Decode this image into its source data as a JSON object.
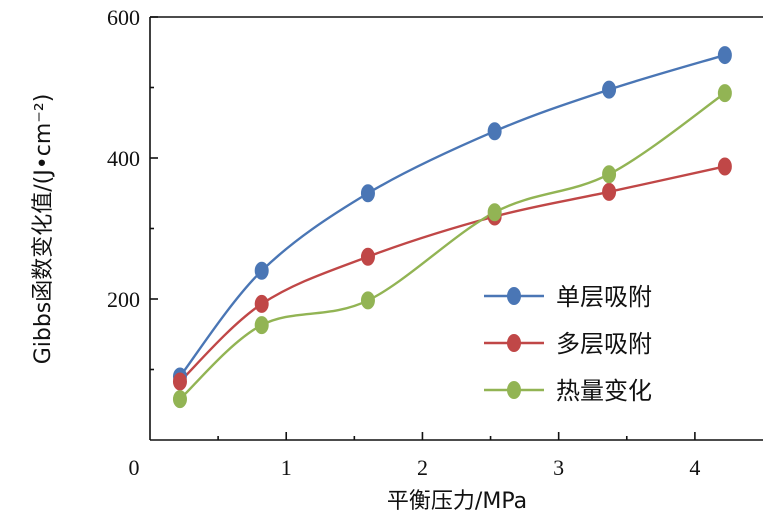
{
  "chart_data": {
    "type": "line",
    "xlabel": "平衡压力/MPa",
    "ylabel": "Gibbs函数变化值/(J•cm⁻²)",
    "xlim": [
      0,
      4.5
    ],
    "ylim": [
      0,
      600
    ],
    "xticks": [
      "0",
      "1",
      "2",
      "3",
      "4"
    ],
    "yticks": [
      "200",
      "400",
      "600"
    ],
    "legend_position": "bottom-right",
    "series": [
      {
        "name": "单层吸附",
        "color": "#4a76b5",
        "x": [
          0.22,
          0.82,
          1.6,
          2.53,
          3.37,
          4.22
        ],
        "values": [
          90,
          240,
          350,
          438,
          497,
          546
        ]
      },
      {
        "name": "多层吸附",
        "color": "#c04747",
        "x": [
          0.22,
          0.82,
          1.6,
          2.53,
          3.37,
          4.22
        ],
        "values": [
          83,
          193,
          260,
          317,
          352,
          388
        ]
      },
      {
        "name": "热量变化",
        "color": "#92b454",
        "x": [
          0.22,
          0.82,
          1.6,
          2.53,
          3.37,
          4.22
        ],
        "values": [
          58,
          163,
          198,
          323,
          377,
          492
        ]
      }
    ]
  }
}
